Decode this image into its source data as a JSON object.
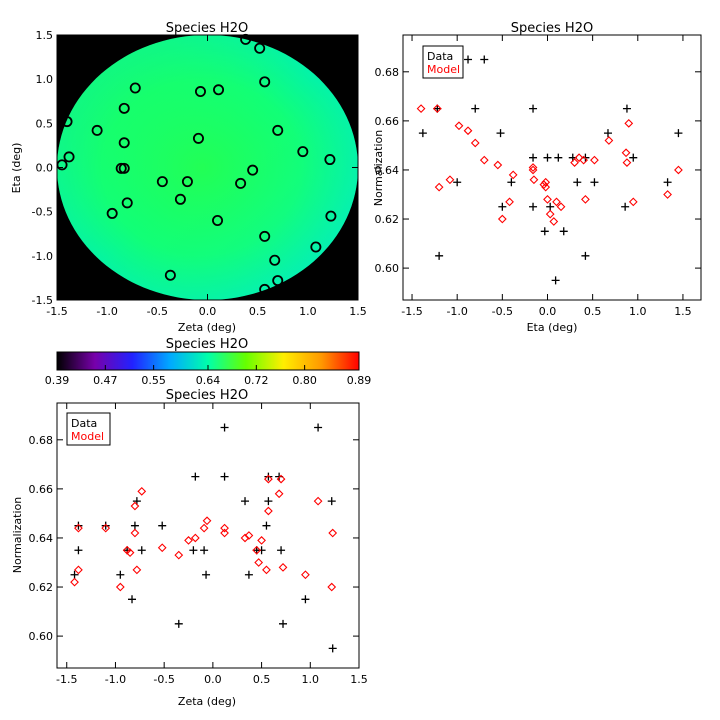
{
  "chart_data": [
    {
      "id": "map",
      "type": "heatmap",
      "title": "Species H2O",
      "xlabel": "Zeta (deg)",
      "ylabel": "Eta (deg)",
      "xlim": [
        -1.5,
        1.5
      ],
      "ylim": [
        -1.5,
        1.5
      ],
      "xticks": [
        -1.5,
        -1.0,
        -0.5,
        0.0,
        0.5,
        1.0,
        1.5
      ],
      "xtick_labels": [
        "-1.5",
        "-1.0",
        "-0.5",
        "0.0",
        "0.5",
        "1.0",
        "1.5"
      ],
      "yticks": [
        -1.5,
        -1.0,
        -0.5,
        0.0,
        0.5,
        1.0,
        1.5
      ],
      "ytick_labels": [
        "-1.5",
        "-1.0",
        "-0.5",
        "0.0",
        "0.5",
        "1.0",
        "1.5"
      ],
      "background_color": "#000000",
      "field": {
        "shape": "disk",
        "radius": 1.5,
        "center_value": 0.665,
        "value_at_left": 0.63,
        "value_at_right": 0.64,
        "value_at_top": 0.67,
        "value_at_bottom": 0.62
      },
      "points": [
        {
          "x": 0.38,
          "y": 1.45
        },
        {
          "x": 0.52,
          "y": 1.35
        },
        {
          "x": -0.72,
          "y": 0.9
        },
        {
          "x": 0.57,
          "y": 0.97
        },
        {
          "x": -0.07,
          "y": 0.86
        },
        {
          "x": 0.11,
          "y": 0.88
        },
        {
          "x": -0.83,
          "y": 0.67
        },
        {
          "x": -1.4,
          "y": 0.52
        },
        {
          "x": -1.1,
          "y": 0.42
        },
        {
          "x": 0.7,
          "y": 0.42
        },
        {
          "x": -0.83,
          "y": 0.28
        },
        {
          "x": -0.09,
          "y": 0.33
        },
        {
          "x": -1.38,
          "y": 0.12
        },
        {
          "x": -1.45,
          "y": 0.03
        },
        {
          "x": 0.95,
          "y": 0.18
        },
        {
          "x": 1.22,
          "y": 0.09
        },
        {
          "x": -0.86,
          "y": -0.01
        },
        {
          "x": -0.83,
          "y": -0.01
        },
        {
          "x": 0.45,
          "y": -0.03
        },
        {
          "x": -0.45,
          "y": -0.16
        },
        {
          "x": -0.2,
          "y": -0.16
        },
        {
          "x": 0.33,
          "y": -0.18
        },
        {
          "x": -0.27,
          "y": -0.36
        },
        {
          "x": -0.8,
          "y": -0.4
        },
        {
          "x": -0.95,
          "y": -0.52
        },
        {
          "x": 0.1,
          "y": -0.6
        },
        {
          "x": 1.23,
          "y": -0.55
        },
        {
          "x": 0.57,
          "y": -0.78
        },
        {
          "x": 1.08,
          "y": -0.9
        },
        {
          "x": 0.67,
          "y": -1.05
        },
        {
          "x": -0.37,
          "y": -1.22
        },
        {
          "x": 0.7,
          "y": -1.28
        },
        {
          "x": 0.57,
          "y": -1.38
        }
      ]
    },
    {
      "id": "colorbar",
      "type": "colorbar",
      "title": "Species H2O",
      "range": [
        0.39,
        0.89
      ],
      "ticks": [
        0.39,
        0.47,
        0.55,
        0.64,
        0.72,
        0.8,
        0.89
      ],
      "tick_labels": [
        "0.39",
        "0.47",
        "0.55",
        "0.64",
        "0.72",
        "0.80",
        "0.89"
      ],
      "colors": [
        "#000000",
        "#7700aa",
        "#2222ff",
        "#00aaff",
        "#00ffaa",
        "#66ff00",
        "#ffee00",
        "#ff9900",
        "#ff0000"
      ]
    },
    {
      "id": "eta",
      "type": "scatter",
      "title": "Species H2O",
      "xlabel": "Eta (deg)",
      "ylabel": "Normalization",
      "xlim": [
        -1.6,
        1.7
      ],
      "ylim": [
        0.587,
        0.695
      ],
      "xticks": [
        -1.5,
        -1.0,
        -0.5,
        0.0,
        0.5,
        1.0,
        1.5
      ],
      "xtick_labels": [
        "-1.5",
        "-1.0",
        "-0.5",
        "0.0",
        "0.5",
        "1.0",
        "1.5"
      ],
      "yticks": [
        0.6,
        0.62,
        0.64,
        0.66,
        0.68
      ],
      "ytick_labels": [
        "0.60",
        "0.62",
        "0.64",
        "0.66",
        "0.68"
      ],
      "legend": {
        "position": "top-left",
        "entries": [
          {
            "label": "Data",
            "color": "#000000"
          },
          {
            "label": "Model",
            "color": "#ff0000"
          }
        ]
      },
      "series": [
        {
          "name": "Data",
          "marker": "plus",
          "color": "#000000",
          "points": [
            [
              -1.38,
              0.655
            ],
            [
              -1.22,
              0.665
            ],
            [
              -1.2,
              0.605
            ],
            [
              -1.0,
              0.635
            ],
            [
              -0.88,
              0.685
            ],
            [
              -0.8,
              0.665
            ],
            [
              -0.7,
              0.685
            ],
            [
              -0.52,
              0.655
            ],
            [
              -0.5,
              0.625
            ],
            [
              -0.4,
              0.635
            ],
            [
              -0.16,
              0.665
            ],
            [
              -0.16,
              0.645
            ],
            [
              -0.16,
              0.625
            ],
            [
              -0.03,
              0.615
            ],
            [
              0.0,
              0.645
            ],
            [
              0.03,
              0.625
            ],
            [
              0.09,
              0.595
            ],
            [
              0.12,
              0.645
            ],
            [
              0.18,
              0.615
            ],
            [
              0.28,
              0.645
            ],
            [
              0.33,
              0.635
            ],
            [
              0.42,
              0.605
            ],
            [
              0.42,
              0.645
            ],
            [
              0.52,
              0.635
            ],
            [
              0.67,
              0.655
            ],
            [
              0.86,
              0.625
            ],
            [
              0.88,
              0.665
            ],
            [
              0.95,
              0.645
            ],
            [
              1.33,
              0.635
            ],
            [
              1.45,
              0.655
            ]
          ]
        },
        {
          "name": "Model",
          "marker": "diamond",
          "color": "#ff0000",
          "points": [
            [
              -1.4,
              0.665
            ],
            [
              -1.22,
              0.665
            ],
            [
              -1.2,
              0.633
            ],
            [
              -1.08,
              0.636
            ],
            [
              -0.98,
              0.658
            ],
            [
              -0.88,
              0.656
            ],
            [
              -0.8,
              0.651
            ],
            [
              -0.7,
              0.644
            ],
            [
              -0.55,
              0.642
            ],
            [
              -0.5,
              0.62
            ],
            [
              -0.42,
              0.627
            ],
            [
              -0.38,
              0.638
            ],
            [
              -0.16,
              0.641
            ],
            [
              -0.16,
              0.64
            ],
            [
              -0.15,
              0.636
            ],
            [
              -0.04,
              0.634
            ],
            [
              -0.02,
              0.635
            ],
            [
              -0.02,
              0.633
            ],
            [
              0.0,
              0.628
            ],
            [
              0.03,
              0.622
            ],
            [
              0.07,
              0.619
            ],
            [
              0.1,
              0.627
            ],
            [
              0.15,
              0.625
            ],
            [
              0.3,
              0.643
            ],
            [
              0.35,
              0.645
            ],
            [
              0.4,
              0.644
            ],
            [
              0.42,
              0.628
            ],
            [
              0.52,
              0.644
            ],
            [
              0.68,
              0.652
            ],
            [
              0.87,
              0.647
            ],
            [
              0.88,
              0.643
            ],
            [
              0.9,
              0.659
            ],
            [
              0.95,
              0.627
            ],
            [
              1.33,
              0.63
            ],
            [
              1.45,
              0.64
            ]
          ]
        }
      ]
    },
    {
      "id": "zeta",
      "type": "scatter",
      "title": "Species H2O",
      "xlabel": "Zeta (deg)",
      "ylabel": "Normalization",
      "xlim": [
        -1.6,
        1.5
      ],
      "ylim": [
        0.587,
        0.695
      ],
      "xticks": [
        -1.5,
        -1.0,
        -0.5,
        0.0,
        0.5,
        1.0,
        1.5
      ],
      "xtick_labels": [
        "-1.5",
        "-1.0",
        "-0.5",
        "0.0",
        "0.5",
        "1.0",
        "1.5"
      ],
      "yticks": [
        0.6,
        0.62,
        0.64,
        0.66,
        0.68
      ],
      "ytick_labels": [
        "0.60",
        "0.62",
        "0.64",
        "0.66",
        "0.68"
      ],
      "legend": {
        "position": "top-left",
        "entries": [
          {
            "label": "Data",
            "color": "#000000"
          },
          {
            "label": "Model",
            "color": "#ff0000"
          }
        ]
      },
      "series": [
        {
          "name": "Data",
          "marker": "plus",
          "color": "#000000",
          "points": [
            [
              -1.42,
              0.625
            ],
            [
              -1.38,
              0.635
            ],
            [
              -1.38,
              0.645
            ],
            [
              -1.1,
              0.645
            ],
            [
              -0.95,
              0.625
            ],
            [
              -0.88,
              0.635
            ],
            [
              -0.83,
              0.615
            ],
            [
              -0.8,
              0.645
            ],
            [
              -0.78,
              0.655
            ],
            [
              -0.73,
              0.635
            ],
            [
              -0.52,
              0.645
            ],
            [
              -0.35,
              0.605
            ],
            [
              -0.2,
              0.635
            ],
            [
              -0.18,
              0.665
            ],
            [
              -0.09,
              0.635
            ],
            [
              -0.07,
              0.625
            ],
            [
              0.12,
              0.685
            ],
            [
              0.12,
              0.665
            ],
            [
              0.33,
              0.655
            ],
            [
              0.37,
              0.625
            ],
            [
              0.45,
              0.635
            ],
            [
              0.5,
              0.635
            ],
            [
              0.55,
              0.645
            ],
            [
              0.57,
              0.655
            ],
            [
              0.57,
              0.665
            ],
            [
              0.68,
              0.665
            ],
            [
              0.7,
              0.635
            ],
            [
              0.72,
              0.605
            ],
            [
              0.95,
              0.615
            ],
            [
              1.08,
              0.685
            ],
            [
              1.22,
              0.655
            ],
            [
              1.23,
              0.595
            ]
          ]
        },
        {
          "name": "Model",
          "marker": "diamond",
          "color": "#ff0000",
          "points": [
            [
              -1.42,
              0.622
            ],
            [
              -1.38,
              0.627
            ],
            [
              -1.38,
              0.644
            ],
            [
              -1.1,
              0.644
            ],
            [
              -0.95,
              0.62
            ],
            [
              -0.88,
              0.635
            ],
            [
              -0.85,
              0.634
            ],
            [
              -0.8,
              0.653
            ],
            [
              -0.8,
              0.642
            ],
            [
              -0.78,
              0.627
            ],
            [
              -0.73,
              0.659
            ],
            [
              -0.52,
              0.636
            ],
            [
              -0.35,
              0.633
            ],
            [
              -0.25,
              0.639
            ],
            [
              -0.18,
              0.64
            ],
            [
              -0.09,
              0.644
            ],
            [
              -0.06,
              0.647
            ],
            [
              0.12,
              0.644
            ],
            [
              0.12,
              0.642
            ],
            [
              0.33,
              0.64
            ],
            [
              0.37,
              0.641
            ],
            [
              0.45,
              0.635
            ],
            [
              0.47,
              0.63
            ],
            [
              0.5,
              0.639
            ],
            [
              0.55,
              0.627
            ],
            [
              0.57,
              0.651
            ],
            [
              0.57,
              0.664
            ],
            [
              0.68,
              0.658
            ],
            [
              0.7,
              0.664
            ],
            [
              0.72,
              0.628
            ],
            [
              0.95,
              0.625
            ],
            [
              1.08,
              0.655
            ],
            [
              1.22,
              0.62
            ],
            [
              1.23,
              0.642
            ]
          ]
        }
      ]
    }
  ]
}
